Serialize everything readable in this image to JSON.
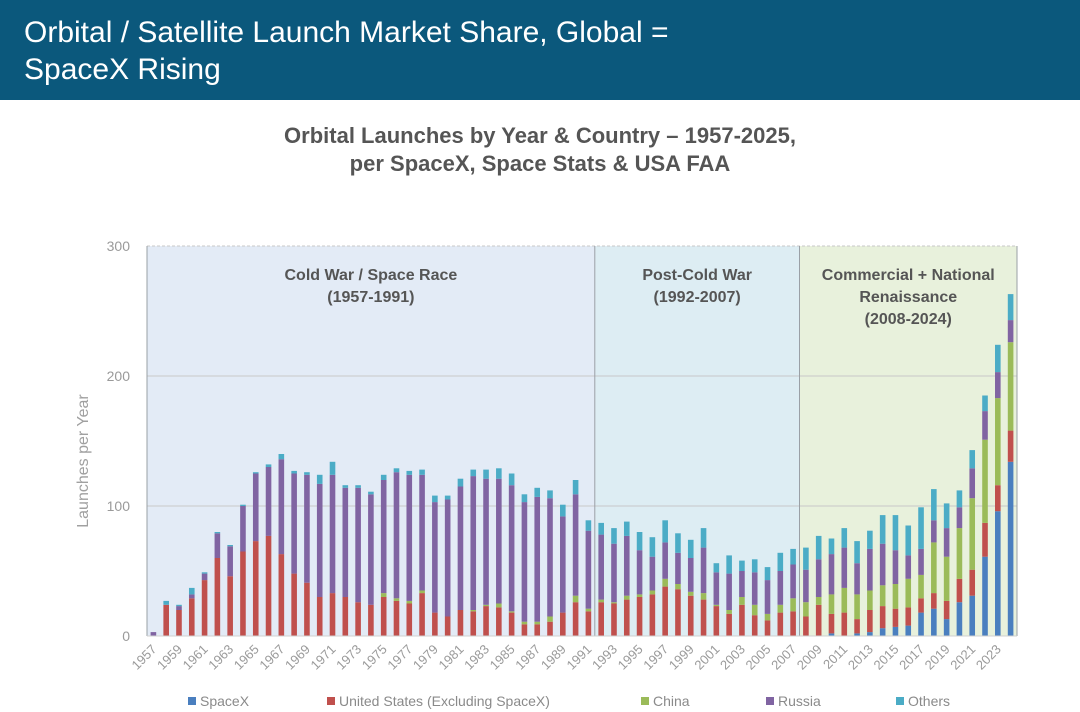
{
  "header": {
    "title": "Orbital / Satellite Launch Market Share, Global =\nSpaceX Rising"
  },
  "chart_data": {
    "type": "bar",
    "stacked": true,
    "title": "Orbital Launches by Year & Country – 1957-2025,\nper SpaceX, Space Stats & USA FAA",
    "ylabel": "Launches per Year",
    "xlabel": "",
    "ylim": [
      0,
      300
    ],
    "yticks": [
      "0",
      "100",
      "200",
      "300"
    ],
    "grid": true,
    "legend_position": "bottom",
    "categories": [
      "1957",
      "1958",
      "1959",
      "1960",
      "1961",
      "1962",
      "1963",
      "1964",
      "1965",
      "1966",
      "1967",
      "1968",
      "1969",
      "1970",
      "1971",
      "1972",
      "1973",
      "1974",
      "1975",
      "1976",
      "1977",
      "1978",
      "1979",
      "1980",
      "1981",
      "1982",
      "1983",
      "1984",
      "1985",
      "1986",
      "1987",
      "1988",
      "1989",
      "1990",
      "1991",
      "1992",
      "1993",
      "1994",
      "1995",
      "1996",
      "1997",
      "1998",
      "1999",
      "2000",
      "2001",
      "2002",
      "2003",
      "2004",
      "2005",
      "2006",
      "2007",
      "2008",
      "2009",
      "2010",
      "2011",
      "2012",
      "2013",
      "2014",
      "2015",
      "2016",
      "2017",
      "2018",
      "2019",
      "2020",
      "2021",
      "2022",
      "2023",
      "2024"
    ],
    "xtick_labels": [
      "1957",
      "1959",
      "1961",
      "1963",
      "1965",
      "1967",
      "1969",
      "1971",
      "1973",
      "1975",
      "1977",
      "1979",
      "1981",
      "1983",
      "1985",
      "1987",
      "1989",
      "1991",
      "1993",
      "1995",
      "1997",
      "1999",
      "2001",
      "2003",
      "2005",
      "2007",
      "2009",
      "2011",
      "2013",
      "2015",
      "2017",
      "2019",
      "2021",
      "2023"
    ],
    "series": [
      {
        "name": "SpaceX",
        "color": "#4a7fbf",
        "values": [
          0,
          0,
          0,
          0,
          0,
          0,
          0,
          0,
          0,
          0,
          0,
          0,
          0,
          0,
          0,
          0,
          0,
          0,
          0,
          0,
          0,
          0,
          0,
          0,
          0,
          0,
          0,
          0,
          0,
          0,
          0,
          0,
          0,
          0,
          0,
          0,
          0,
          0,
          0,
          0,
          0,
          0,
          0,
          0,
          0,
          0,
          0,
          0,
          0,
          0,
          0,
          0,
          0,
          2,
          0,
          2,
          3,
          6,
          7,
          8,
          18,
          21,
          13,
          26,
          31,
          61,
          96,
          134
        ]
      },
      {
        "name": "United States (Excluding SpaceX)",
        "color": "#c0504d",
        "values": [
          0,
          24,
          20,
          29,
          43,
          60,
          46,
          65,
          73,
          77,
          63,
          48,
          41,
          30,
          33,
          30,
          26,
          24,
          30,
          27,
          25,
          33,
          18,
          15,
          20,
          19,
          23,
          22,
          18,
          9,
          9,
          11,
          18,
          26,
          19,
          26,
          25,
          28,
          30,
          32,
          38,
          36,
          31,
          28,
          23,
          17,
          24,
          16,
          12,
          18,
          19,
          15,
          24,
          15,
          18,
          11,
          17,
          17,
          14,
          14,
          11,
          12,
          14,
          18,
          20,
          26,
          20,
          24
        ]
      },
      {
        "name": "China",
        "color": "#9bbb59",
        "values": [
          0,
          0,
          0,
          0,
          0,
          0,
          0,
          0,
          0,
          0,
          0,
          0,
          0,
          0,
          0,
          0,
          0,
          0,
          3,
          2,
          2,
          2,
          0,
          0,
          0,
          1,
          1,
          3,
          1,
          2,
          2,
          4,
          0,
          5,
          2,
          2,
          1,
          3,
          2,
          3,
          6,
          4,
          3,
          5,
          1,
          3,
          6,
          8,
          5,
          6,
          10,
          11,
          6,
          15,
          19,
          19,
          15,
          16,
          19,
          22,
          18,
          39,
          34,
          39,
          55,
          64,
          67,
          68
        ]
      },
      {
        "name": "Russia",
        "color": "#8064a2",
        "values": [
          3,
          0,
          3,
          3,
          5,
          19,
          23,
          35,
          52,
          53,
          73,
          77,
          83,
          87,
          91,
          84,
          88,
          85,
          87,
          97,
          97,
          89,
          85,
          90,
          95,
          103,
          97,
          96,
          97,
          92,
          96,
          91,
          74,
          78,
          60,
          50,
          45,
          46,
          34,
          26,
          28,
          24,
          26,
          35,
          25,
          28,
          20,
          25,
          26,
          26,
          26,
          25,
          29,
          31,
          31,
          24,
          32,
          32,
          26,
          18,
          20,
          17,
          22,
          16,
          23,
          22,
          20,
          17
        ]
      },
      {
        "name": "Others",
        "color": "#4bacc6",
        "values": [
          0,
          3,
          1,
          5,
          1,
          1,
          1,
          1,
          1,
          2,
          4,
          2,
          2,
          7,
          10,
          2,
          2,
          2,
          4,
          3,
          3,
          4,
          5,
          3,
          6,
          5,
          7,
          8,
          9,
          6,
          7,
          6,
          9,
          11,
          8,
          9,
          12,
          11,
          14,
          15,
          17,
          15,
          14,
          15,
          7,
          14,
          8,
          10,
          10,
          14,
          12,
          17,
          18,
          12,
          15,
          17,
          14,
          22,
          27,
          23,
          32,
          24,
          19,
          13,
          14,
          12,
          21,
          20
        ]
      }
    ],
    "annotations": [
      {
        "label": "Cold War / Space Race",
        "sublabel": "(1957-1991)",
        "from": "1957",
        "to": "1991",
        "color": "#e3ebf6"
      },
      {
        "label": "Post-Cold War",
        "sublabel": "(1992-2007)",
        "from": "1992",
        "to": "2007",
        "color": "#ddedf3"
      },
      {
        "label": "Commercial + National",
        "label2": "Renaissance",
        "sublabel": "(2008-2024)",
        "from": "2008",
        "to": "2024",
        "color": "#e8f1dc"
      }
    ]
  }
}
